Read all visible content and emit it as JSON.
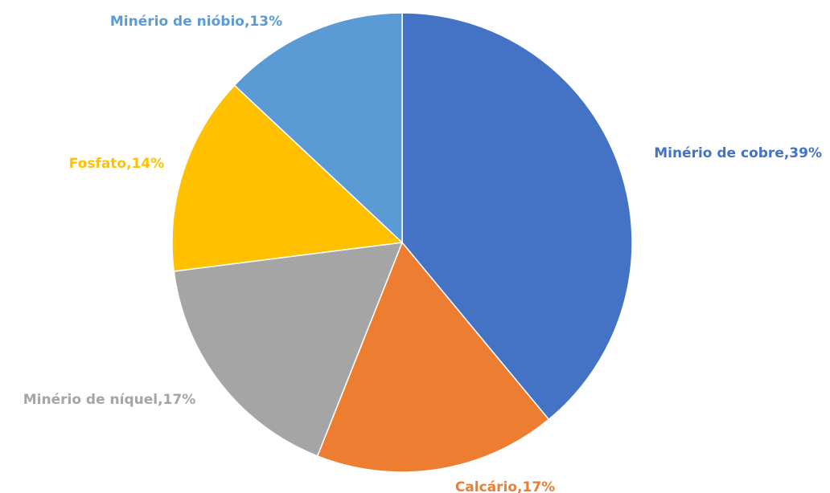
{
  "chart_data": {
    "type": "pie",
    "title": "",
    "start_angle_deg": 0,
    "direction": "clockwise",
    "slices": [
      {
        "label": "Minério de cobre",
        "value": 39,
        "display": "Minério de cobre,39%",
        "color": "#4472C4"
      },
      {
        "label": "Calcário",
        "value": 17,
        "display": "Calcário,17%",
        "color": "#ED7D31"
      },
      {
        "label": "Minério de níquel",
        "value": 17,
        "display": "Minério de níquel,17%",
        "color": "#A5A5A5"
      },
      {
        "label": "Fosfato",
        "value": 14,
        "display": "Fosfato,14%",
        "color": "#FFC000"
      },
      {
        "label": "Minério de nióbio",
        "value": 13,
        "display": "Minério de nióbio,13%",
        "color": "#5B9BD5"
      }
    ],
    "legend": "none",
    "data_labels": "outside"
  }
}
